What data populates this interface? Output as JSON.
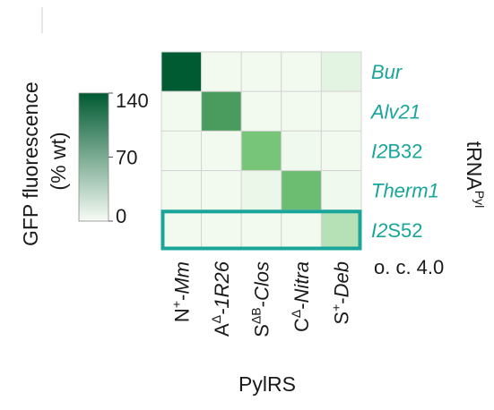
{
  "chart_data": {
    "type": "heatmap",
    "rows": [
      {
        "name": "Bur",
        "parts": [
          {
            "t": "Bur",
            "i": true
          }
        ]
      },
      {
        "name": "Alv21",
        "parts": [
          {
            "t": "Alv21",
            "i": true
          }
        ]
      },
      {
        "name": "I2B32",
        "parts": [
          {
            "t": "I2",
            "i": true
          },
          {
            "t": "B32",
            "i": false
          }
        ]
      },
      {
        "name": "Therm1",
        "parts": [
          {
            "t": "Therm1",
            "i": true
          }
        ]
      },
      {
        "name": "I2S52",
        "parts": [
          {
            "t": "I2",
            "i": true
          },
          {
            "t": "S52",
            "i": false
          }
        ]
      }
    ],
    "columns": [
      {
        "name": "N+-Mm",
        "parts": [
          {
            "t": "N",
            "i": false
          },
          {
            "t": "+",
            "i": false,
            "sup": true
          },
          {
            "t": "-",
            "i": false
          },
          {
            "t": "Mm",
            "i": true
          }
        ]
      },
      {
        "name": "AΔ-1R26",
        "parts": [
          {
            "t": "A",
            "i": false
          },
          {
            "t": "Δ",
            "i": false,
            "sup": true
          },
          {
            "t": "-1R26",
            "i": true
          }
        ]
      },
      {
        "name": "SΔB-Clos",
        "parts": [
          {
            "t": "S",
            "i": false
          },
          {
            "t": "ΔB",
            "i": false,
            "sup": true
          },
          {
            "t": "-",
            "i": false
          },
          {
            "t": "Clos",
            "i": true
          }
        ]
      },
      {
        "name": "CΔ-Nitra",
        "parts": [
          {
            "t": "C",
            "i": false
          },
          {
            "t": "Δ",
            "i": false,
            "sup": true
          },
          {
            "t": "-",
            "i": false
          },
          {
            "t": "Nitra",
            "i": true
          }
        ]
      },
      {
        "name": "S+-Deb",
        "parts": [
          {
            "t": "S",
            "i": false
          },
          {
            "t": "+",
            "i": false,
            "sup": true
          },
          {
            "t": "-",
            "i": false
          },
          {
            "t": "Deb",
            "i": true
          }
        ]
      }
    ],
    "values": [
      [
        140,
        3,
        3,
        3,
        12
      ],
      [
        3,
        105,
        3,
        3,
        3
      ],
      [
        3,
        3,
        82,
        5,
        3
      ],
      [
        3,
        3,
        8,
        88,
        5
      ],
      [
        3,
        3,
        3,
        3,
        42
      ]
    ],
    "vmin": 0,
    "vmax": 140,
    "colorscale": [
      "#f7fcf5",
      "#005a32"
    ],
    "colorbar_ticks": [
      "140",
      "70",
      "0"
    ],
    "colorbar_tick_values": [
      140,
      70,
      0
    ],
    "colorbar_label_line1": "GFP fluorescence",
    "colorbar_label_line2": "(% wt)",
    "row_axis_label": "tRNA",
    "row_axis_label_sup": "Pyl",
    "col_axis_label": "PylRS",
    "highlight_row": "I2S52",
    "highlight_color": "#1aa59a",
    "row_label_color": "#1aa59a",
    "note": "o. c. 4.0"
  }
}
